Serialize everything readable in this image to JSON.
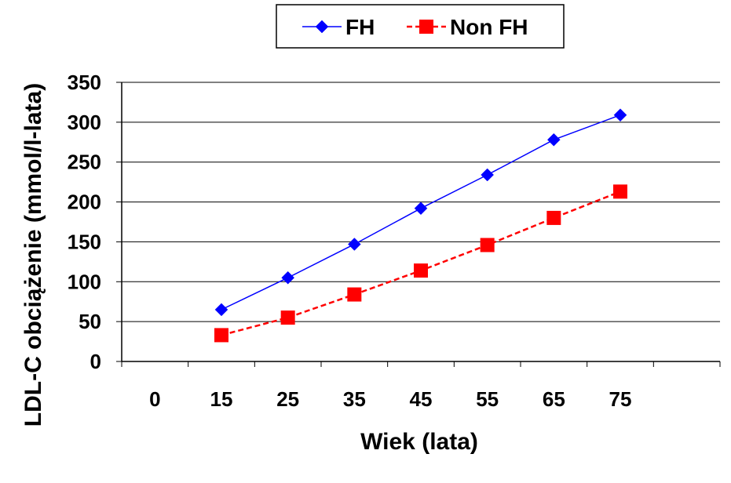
{
  "chart_data": {
    "type": "line",
    "categories": [
      "0",
      "15",
      "25",
      "35",
      "45",
      "55",
      "65",
      "75"
    ],
    "series": [
      {
        "name": "FH",
        "color": "#0000ff",
        "marker": "diamond",
        "line": "solid",
        "values": [
          null,
          65,
          105,
          147,
          192,
          234,
          278,
          309
        ]
      },
      {
        "name": "Non FH",
        "color": "#ff0000",
        "marker": "square",
        "line": "dashed",
        "values": [
          null,
          33,
          55,
          84,
          114,
          146,
          180,
          213
        ]
      }
    ],
    "title": "",
    "xlabel": "Wiek   (lata)",
    "ylabel": "LDL-C obciążenie  (mmol/l-lata)",
    "ylim": [
      0,
      350
    ],
    "yticks": [
      0,
      50,
      100,
      150,
      200,
      250,
      300,
      350
    ],
    "grid": true,
    "legend_position": "top"
  }
}
